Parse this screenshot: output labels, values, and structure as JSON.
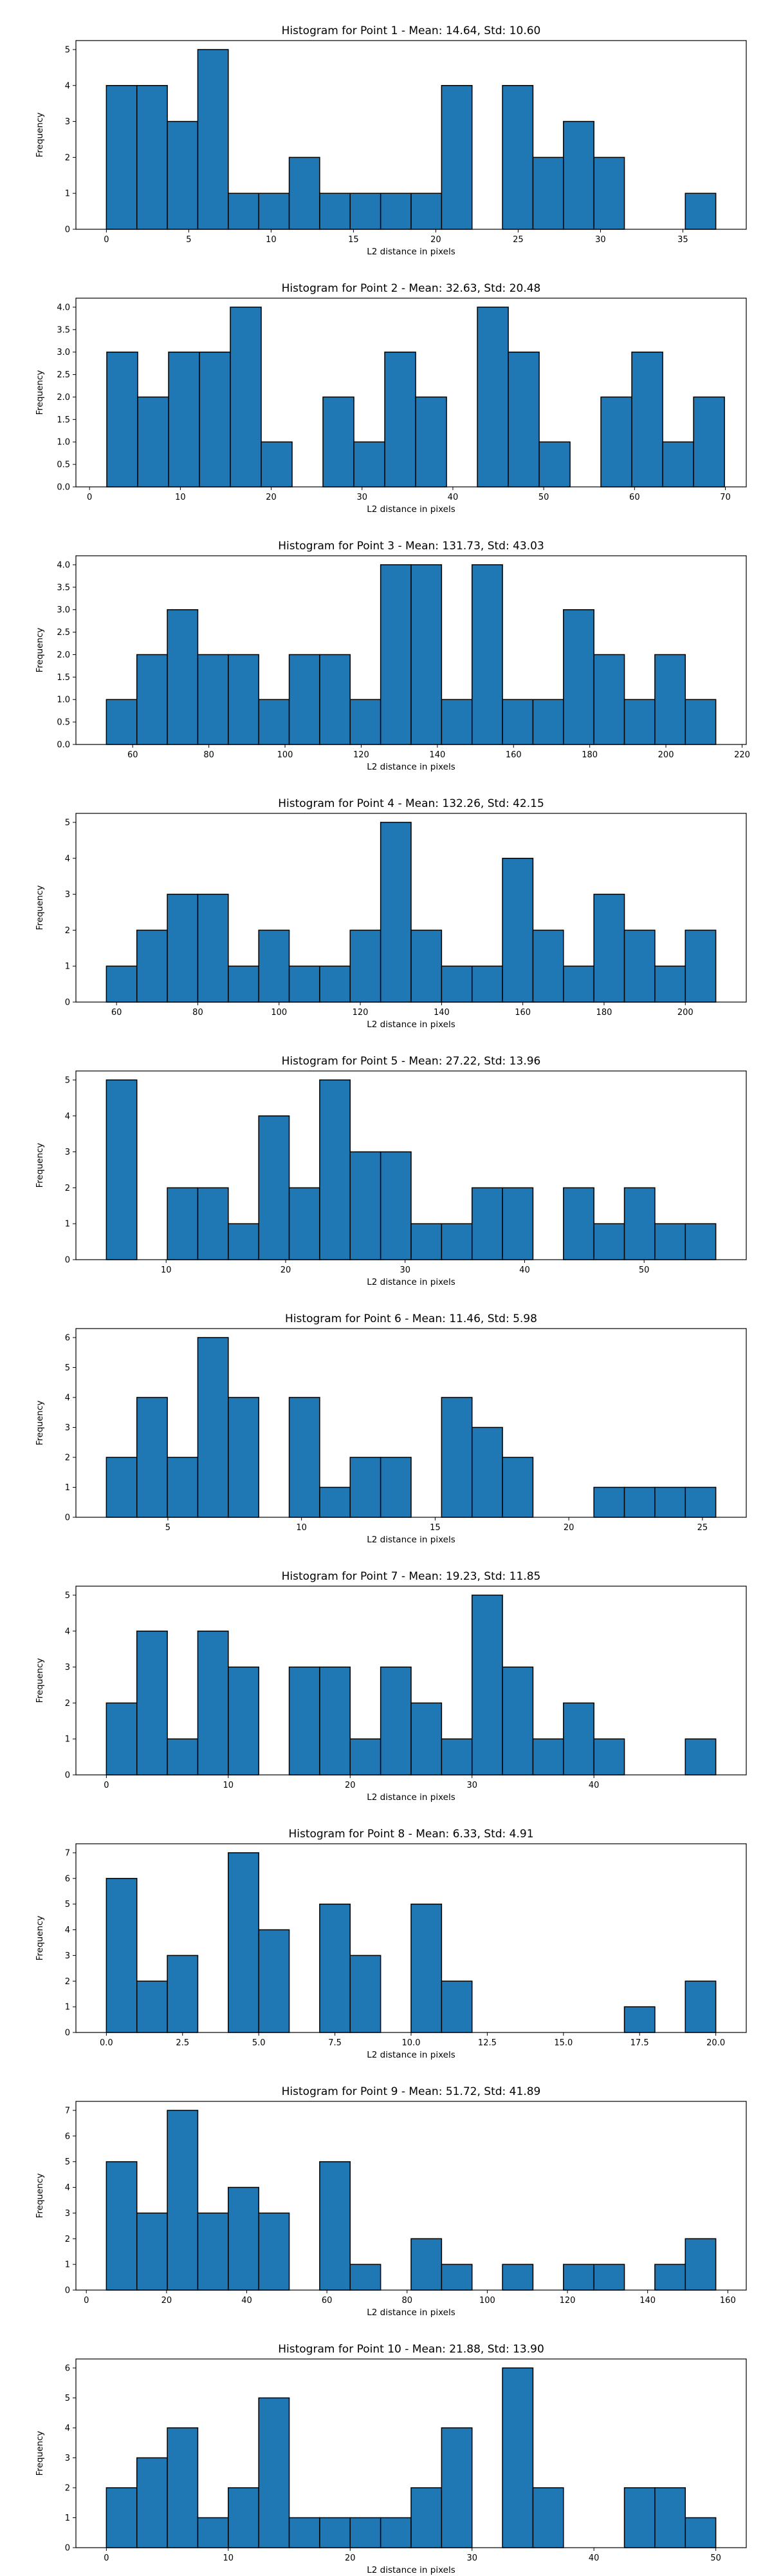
{
  "chart_data": [
    {
      "type": "bar",
      "title": "Histogram for Point 1 - Mean: 14.64, Std: 10.60",
      "xlabel": "L2 distance in pixels",
      "ylabel": "Frequency",
      "bin_start": 0.0,
      "bin_width": 1.85,
      "values": [
        4,
        4,
        3,
        5,
        1,
        1,
        2,
        1,
        1,
        1,
        1,
        4,
        0,
        4,
        2,
        3,
        2,
        0,
        0,
        1
      ],
      "xlim": [
        -1.85,
        38.85
      ],
      "ylim": [
        0,
        5.25
      ],
      "xticks": [
        0,
        5,
        10,
        15,
        20,
        25,
        30,
        35
      ],
      "xtick_labels": [
        "0",
        "5",
        "10",
        "15",
        "20",
        "25",
        "30",
        "35"
      ],
      "yticks": [
        0,
        1,
        2,
        3,
        4,
        5
      ],
      "ytick_labels": [
        "0",
        "1",
        "2",
        "3",
        "4",
        "5"
      ]
    },
    {
      "type": "bar",
      "title": "Histogram for Point 2 - Mean: 32.63, Std: 20.48",
      "xlabel": "L2 distance in pixels",
      "ylabel": "Frequency",
      "bin_start": 1.9,
      "bin_width": 3.4,
      "values": [
        3,
        2,
        3,
        3,
        4,
        1,
        0,
        2,
        1,
        3,
        2,
        0,
        4,
        3,
        1,
        0,
        2,
        3,
        1,
        2
      ],
      "xlim": [
        -1.5,
        72.3
      ],
      "ylim": [
        0,
        4.2
      ],
      "xticks": [
        0,
        10,
        20,
        30,
        40,
        50,
        60,
        70
      ],
      "xtick_labels": [
        "0",
        "10",
        "20",
        "30",
        "40",
        "50",
        "60",
        "70"
      ],
      "yticks": [
        0,
        0.5,
        1,
        1.5,
        2,
        2.5,
        3,
        3.5,
        4
      ],
      "ytick_labels": [
        "0.0",
        "0.5",
        "1.0",
        "1.5",
        "2.0",
        "2.5",
        "3.0",
        "3.5",
        "4.0"
      ]
    },
    {
      "type": "bar",
      "title": "Histogram for Point 3 - Mean: 131.73, Std: 43.03",
      "xlabel": "L2 distance in pixels",
      "ylabel": "Frequency",
      "bin_start": 53.1,
      "bin_width": 8.0,
      "values": [
        1,
        2,
        3,
        2,
        2,
        1,
        2,
        2,
        1,
        4,
        4,
        1,
        4,
        1,
        1,
        3,
        2,
        1,
        2,
        1
      ],
      "xlim": [
        45.1,
        221.1
      ],
      "ylim": [
        0,
        4.2
      ],
      "xticks": [
        60,
        80,
        100,
        120,
        140,
        160,
        180,
        200,
        220
      ],
      "xtick_labels": [
        "60",
        "80",
        "100",
        "120",
        "140",
        "160",
        "180",
        "200",
        "220"
      ],
      "yticks": [
        0,
        0.5,
        1,
        1.5,
        2,
        2.5,
        3,
        3.5,
        4
      ],
      "ytick_labels": [
        "0.0",
        "0.5",
        "1.0",
        "1.5",
        "2.0",
        "2.5",
        "3.0",
        "3.5",
        "4.0"
      ]
    },
    {
      "type": "bar",
      "title": "Histogram for Point 4 - Mean: 132.26, Std: 42.15",
      "xlabel": "L2 distance in pixels",
      "ylabel": "Frequency",
      "bin_start": 57.5,
      "bin_width": 7.5,
      "values": [
        1,
        2,
        3,
        3,
        1,
        2,
        1,
        1,
        2,
        5,
        2,
        1,
        1,
        4,
        2,
        1,
        3,
        2,
        1,
        2
      ],
      "xlim": [
        50.0,
        215.0
      ],
      "ylim": [
        0,
        5.25
      ],
      "xticks": [
        60,
        80,
        100,
        120,
        140,
        160,
        180,
        200
      ],
      "xtick_labels": [
        "60",
        "80",
        "100",
        "120",
        "140",
        "160",
        "180",
        "200"
      ],
      "yticks": [
        0,
        1,
        2,
        3,
        4,
        5
      ],
      "ytick_labels": [
        "0",
        "1",
        "2",
        "3",
        "4",
        "5"
      ]
    },
    {
      "type": "bar",
      "title": "Histogram for Point 5 - Mean: 27.22, Std: 13.96",
      "xlabel": "L2 distance in pixels",
      "ylabel": "Frequency",
      "bin_start": 5.0,
      "bin_width": 2.55,
      "values": [
        5,
        0,
        2,
        2,
        1,
        4,
        2,
        5,
        3,
        3,
        1,
        1,
        2,
        2,
        0,
        2,
        1,
        2,
        1,
        1
      ],
      "xlim": [
        2.45,
        58.55
      ],
      "ylim": [
        0,
        5.25
      ],
      "xticks": [
        10,
        20,
        30,
        40,
        50
      ],
      "xtick_labels": [
        "10",
        "20",
        "30",
        "40",
        "50"
      ],
      "yticks": [
        0,
        1,
        2,
        3,
        4,
        5
      ],
      "ytick_labels": [
        "0",
        "1",
        "2",
        "3",
        "4",
        "5"
      ]
    },
    {
      "type": "bar",
      "title": "Histogram for Point 6 - Mean: 11.46, Std: 5.98",
      "xlabel": "L2 distance in pixels",
      "ylabel": "Frequency",
      "bin_start": 2.7,
      "bin_width": 1.14,
      "values": [
        2,
        4,
        2,
        6,
        4,
        0,
        4,
        1,
        2,
        2,
        0,
        4,
        3,
        2,
        0,
        0,
        1,
        1,
        1,
        1
      ],
      "xlim": [
        1.56,
        26.64
      ],
      "ylim": [
        0,
        6.3
      ],
      "xticks": [
        5,
        10,
        15,
        20,
        25
      ],
      "xtick_labels": [
        "5",
        "10",
        "15",
        "20",
        "25"
      ],
      "yticks": [
        0,
        1,
        2,
        3,
        4,
        5,
        6
      ],
      "ytick_labels": [
        "0",
        "1",
        "2",
        "3",
        "4",
        "5",
        "6"
      ]
    },
    {
      "type": "bar",
      "title": "Histogram for Point 7 - Mean: 19.23, Std: 11.85",
      "xlabel": "L2 distance in pixels",
      "ylabel": "Frequency",
      "bin_start": 0.0,
      "bin_width": 2.5,
      "values": [
        2,
        4,
        1,
        4,
        3,
        0,
        3,
        3,
        1,
        3,
        2,
        1,
        5,
        3,
        1,
        2,
        1,
        0,
        0,
        1
      ],
      "xlim": [
        -2.5,
        52.5
      ],
      "ylim": [
        0,
        5.25
      ],
      "xticks": [
        0,
        10,
        20,
        30,
        40
      ],
      "xtick_labels": [
        "0",
        "10",
        "20",
        "30",
        "40"
      ],
      "yticks": [
        0,
        1,
        2,
        3,
        4,
        5
      ],
      "ytick_labels": [
        "0",
        "1",
        "2",
        "3",
        "4",
        "5"
      ]
    },
    {
      "type": "bar",
      "title": "Histogram for Point 8 - Mean: 6.33, Std: 4.91",
      "xlabel": "L2 distance in pixels",
      "ylabel": "Frequency",
      "bin_start": 0.0,
      "bin_width": 1.0,
      "values": [
        6,
        2,
        3,
        0,
        7,
        4,
        0,
        5,
        3,
        0,
        5,
        2,
        0,
        0,
        0,
        0,
        0,
        1,
        0,
        2
      ],
      "xlim": [
        -1.0,
        21.0
      ],
      "ylim": [
        0,
        7.35
      ],
      "xticks": [
        0,
        2.5,
        5,
        7.5,
        10,
        12.5,
        15,
        17.5,
        20
      ],
      "xtick_labels": [
        "0.0",
        "2.5",
        "5.0",
        "7.5",
        "10.0",
        "12.5",
        "15.0",
        "17.5",
        "20.0"
      ],
      "yticks": [
        0,
        1,
        2,
        3,
        4,
        5,
        6,
        7
      ],
      "ytick_labels": [
        "0",
        "1",
        "2",
        "3",
        "4",
        "5",
        "6",
        "7"
      ]
    },
    {
      "type": "bar",
      "title": "Histogram for Point 9 - Mean: 51.72, Std: 41.89",
      "xlabel": "L2 distance in pixels",
      "ylabel": "Frequency",
      "bin_start": 5.0,
      "bin_width": 7.6,
      "values": [
        5,
        3,
        7,
        3,
        4,
        3,
        0,
        5,
        1,
        0,
        2,
        1,
        0,
        1,
        0,
        1,
        1,
        0,
        1,
        2
      ],
      "xlim": [
        -2.6,
        164.6
      ],
      "ylim": [
        0,
        7.35
      ],
      "xticks": [
        0,
        20,
        40,
        60,
        80,
        100,
        120,
        140,
        160
      ],
      "xtick_labels": [
        "0",
        "20",
        "40",
        "60",
        "80",
        "100",
        "120",
        "140",
        "160"
      ],
      "yticks": [
        0,
        1,
        2,
        3,
        4,
        5,
        6,
        7
      ],
      "ytick_labels": [
        "0",
        "1",
        "2",
        "3",
        "4",
        "5",
        "6",
        "7"
      ]
    },
    {
      "type": "bar",
      "title": "Histogram for Point 10 - Mean: 21.88, Std: 13.90",
      "xlabel": "L2 distance in pixels",
      "ylabel": "Frequency",
      "bin_start": 0.0,
      "bin_width": 2.5,
      "values": [
        2,
        3,
        4,
        1,
        2,
        5,
        1,
        1,
        1,
        1,
        2,
        4,
        0,
        6,
        2,
        0,
        0,
        2,
        2,
        1
      ],
      "xlim": [
        -2.5,
        52.5
      ],
      "ylim": [
        0,
        6.3
      ],
      "xticks": [
        0,
        10,
        20,
        30,
        40,
        50
      ],
      "xtick_labels": [
        "0",
        "10",
        "20",
        "30",
        "40",
        "50"
      ],
      "yticks": [
        0,
        1,
        2,
        3,
        4,
        5,
        6
      ],
      "ytick_labels": [
        "0",
        "1",
        "2",
        "3",
        "4",
        "5",
        "6"
      ]
    }
  ],
  "colors": {
    "bar_fill": "#1f77b4",
    "bar_edge": "#000000",
    "background": "#ffffff"
  }
}
